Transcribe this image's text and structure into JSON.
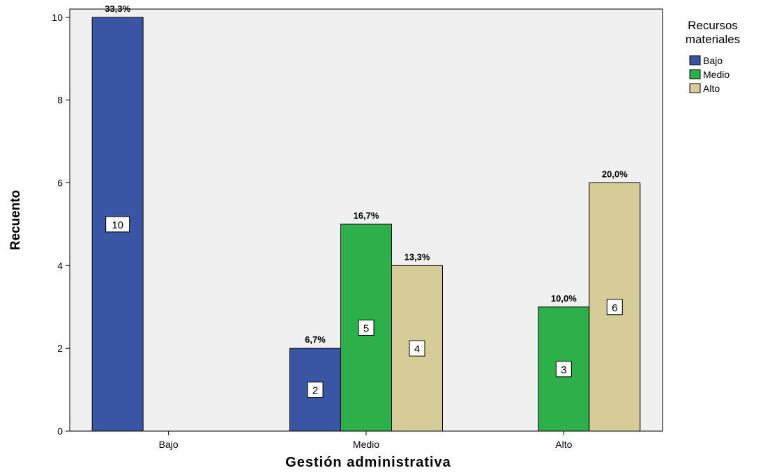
{
  "chart_data": {
    "type": "bar",
    "xlabel": "Gestión administrativa",
    "ylabel": "Recuento",
    "ylim": [
      0,
      10.2
    ],
    "yticks": [
      0,
      2,
      4,
      6,
      8,
      10
    ],
    "categories": [
      "Bajo",
      "Medio",
      "Alto"
    ],
    "legend": {
      "title_lines": [
        "Recursos",
        "materiales"
      ],
      "placement": "right"
    },
    "series": [
      {
        "name": "Bajo",
        "color": "#3B55A5",
        "values": [
          10,
          2,
          null
        ],
        "counts": [
          "10",
          "2",
          ""
        ],
        "percent_labels": [
          "33,3%",
          "6,7%",
          ""
        ]
      },
      {
        "name": "Medio",
        "color": "#2DB04A",
        "values": [
          null,
          5,
          3
        ],
        "counts": [
          "",
          "5",
          "3"
        ],
        "percent_labels": [
          "",
          "16,7%",
          "10,0%"
        ]
      },
      {
        "name": "Alto",
        "color": "#D5CC97",
        "values": [
          null,
          4,
          6
        ],
        "counts": [
          "",
          "4",
          "6"
        ],
        "percent_labels": [
          "",
          "13,3%",
          "20,0%"
        ]
      }
    ],
    "plot_background": "#F0F0F0",
    "grid": false
  }
}
